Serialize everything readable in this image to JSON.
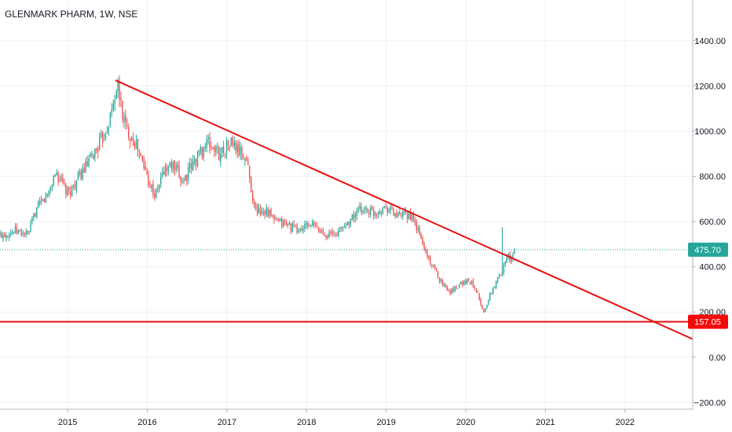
{
  "chart_data": {
    "type": "candlestick",
    "title": "GLENMARK PHARM, 1W, NSE",
    "x_range": [
      2014.15,
      2022.85
    ],
    "ylim": [
      -230,
      1580
    ],
    "y_ticks": [
      -200,
      0,
      200,
      400,
      600,
      800,
      1000,
      1200,
      1400
    ],
    "y_tick_labels": [
      "−200.00",
      "0.00",
      "200.00",
      "400.00",
      "600.00",
      "800.00",
      "1000.00",
      "1200.00",
      "1400.00"
    ],
    "x_ticks": [
      2015,
      2016,
      2017,
      2018,
      2019,
      2020,
      2021,
      2022
    ],
    "x_tick_labels": [
      "2015",
      "2016",
      "2017",
      "2018",
      "2019",
      "2020",
      "2021",
      "2022"
    ],
    "grid": true,
    "colors": {
      "up": "#26a69a",
      "down": "#ef5350",
      "trendline": "#e80f0f",
      "price_badge": "#26a69a",
      "level_badge": "#f50a0a"
    },
    "last_price": {
      "value": 475.7,
      "label": "475.70"
    },
    "horizontal_level": {
      "value": 157.05,
      "label": "157.05"
    },
    "trendline": {
      "x1": 2015.6,
      "y1": 1225,
      "x2": 2022.85,
      "y2": 80
    },
    "price_path": [
      [
        2014.15,
        540
      ],
      [
        2014.35,
        560
      ],
      [
        2014.5,
        540
      ],
      [
        2014.6,
        650
      ],
      [
        2014.75,
        720
      ],
      [
        2014.85,
        820
      ],
      [
        2015.0,
        720
      ],
      [
        2015.15,
        800
      ],
      [
        2015.3,
        880
      ],
      [
        2015.45,
        980
      ],
      [
        2015.55,
        1080
      ],
      [
        2015.62,
        1210
      ],
      [
        2015.72,
        1020
      ],
      [
        2015.85,
        950
      ],
      [
        2016.0,
        800
      ],
      [
        2016.1,
        710
      ],
      [
        2016.2,
        820
      ],
      [
        2016.3,
        850
      ],
      [
        2016.45,
        780
      ],
      [
        2016.6,
        870
      ],
      [
        2016.75,
        950
      ],
      [
        2016.9,
        900
      ],
      [
        2017.05,
        950
      ],
      [
        2017.25,
        870
      ],
      [
        2017.35,
        650
      ],
      [
        2017.5,
        650
      ],
      [
        2017.6,
        600
      ],
      [
        2017.75,
        590
      ],
      [
        2017.9,
        560
      ],
      [
        2018.05,
        590
      ],
      [
        2018.2,
        550
      ],
      [
        2018.35,
        540
      ],
      [
        2018.5,
        590
      ],
      [
        2018.7,
        660
      ],
      [
        2018.85,
        640
      ],
      [
        2019.0,
        670
      ],
      [
        2019.15,
        620
      ],
      [
        2019.3,
        630
      ],
      [
        2019.4,
        560
      ],
      [
        2019.5,
        460
      ],
      [
        2019.6,
        390
      ],
      [
        2019.7,
        330
      ],
      [
        2019.8,
        290
      ],
      [
        2019.95,
        330
      ],
      [
        2020.05,
        340
      ],
      [
        2020.15,
        290
      ],
      [
        2020.22,
        190
      ],
      [
        2020.3,
        270
      ],
      [
        2020.38,
        330
      ],
      [
        2020.45,
        380
      ],
      [
        2020.52,
        460
      ],
      [
        2020.56,
        420
      ],
      [
        2020.62,
        475.7
      ]
    ],
    "volatility_spikes": [
      {
        "x": 2020.46,
        "high": 575
      }
    ]
  }
}
